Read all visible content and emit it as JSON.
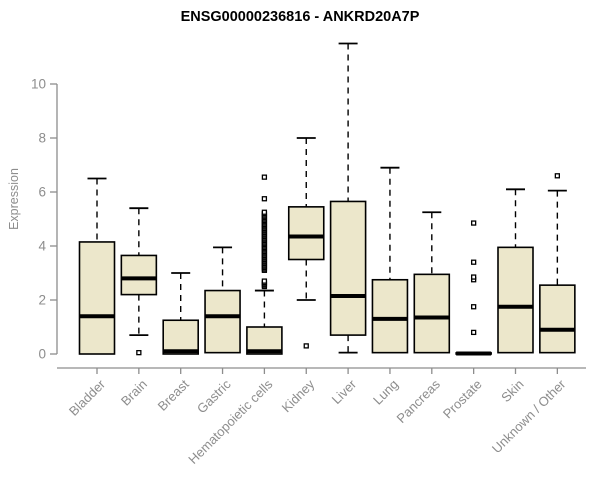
{
  "title": "ENSG00000236816 - ANKRD20A7P",
  "colors": {
    "box_fill": "#ece7cb",
    "box_stroke": "#000000",
    "median": "#000000",
    "whisker": "#000000",
    "outlier_stroke": "#000000",
    "axis": "#8d8d8d",
    "tick_text": "#8d8d8d",
    "title_text": "#000000",
    "background": "#ffffff"
  },
  "chart_data": {
    "type": "boxplot",
    "title": "ENSG00000236816 - ANKRD20A7P",
    "xlabel": "",
    "ylabel": "Expression",
    "yticks": [
      0,
      2,
      4,
      6,
      8,
      10
    ],
    "ylim": [
      0,
      11.8
    ],
    "grid": false,
    "legend": false,
    "categories": [
      "Bladder",
      "Brain",
      "Breast",
      "Gastric",
      "Hematopoietic cells",
      "Kidney",
      "Liver",
      "Lung",
      "Pancreas",
      "Prostate",
      "Skin",
      "Unknown / Other"
    ],
    "series": [
      {
        "name": "Bladder",
        "whisker_low": 0,
        "q1": 0,
        "median": 1.4,
        "q3": 4.15,
        "whisker_high": 6.5,
        "outliers": []
      },
      {
        "name": "Brain",
        "whisker_low": 0.7,
        "q1": 2.2,
        "median": 2.8,
        "q3": 3.65,
        "whisker_high": 5.4,
        "outliers": [
          0.05
        ]
      },
      {
        "name": "Breast",
        "whisker_low": 0,
        "q1": 0,
        "median": 0.1,
        "q3": 1.25,
        "whisker_high": 3.0,
        "outliers": []
      },
      {
        "name": "Gastric",
        "whisker_low": 0.05,
        "q1": 0.05,
        "median": 1.4,
        "q3": 2.35,
        "whisker_high": 3.95,
        "outliers": []
      },
      {
        "name": "Hematopoietic cells",
        "whisker_low": 0,
        "q1": 0,
        "median": 0.1,
        "q3": 1.0,
        "whisker_high": 2.35,
        "outliers": [
          2.5,
          2.55,
          2.6,
          2.65,
          2.7,
          3.1,
          3.15,
          3.2,
          3.25,
          3.3,
          3.35,
          3.4,
          3.45,
          3.5,
          3.55,
          3.6,
          3.65,
          3.7,
          3.75,
          3.8,
          3.85,
          3.9,
          3.95,
          4.0,
          4.05,
          4.1,
          4.15,
          4.2,
          4.25,
          4.3,
          4.35,
          4.4,
          4.45,
          4.5,
          4.55,
          4.6,
          4.65,
          4.7,
          4.75,
          4.8,
          4.85,
          4.9,
          4.95,
          5.0,
          5.05,
          5.1,
          5.15,
          5.2,
          5.25,
          5.75,
          6.55
        ]
      },
      {
        "name": "Kidney",
        "whisker_low": 2.0,
        "q1": 3.5,
        "median": 4.35,
        "q3": 5.45,
        "whisker_high": 8.0,
        "outliers": [
          0.3
        ]
      },
      {
        "name": "Liver",
        "whisker_low": 0.05,
        "q1": 0.7,
        "median": 2.15,
        "q3": 5.65,
        "whisker_high": 11.5,
        "outliers": []
      },
      {
        "name": "Lung",
        "whisker_low": 0.05,
        "q1": 0.05,
        "median": 1.3,
        "q3": 2.75,
        "whisker_high": 6.9,
        "outliers": []
      },
      {
        "name": "Pancreas",
        "whisker_low": 0.05,
        "q1": 0.05,
        "median": 1.35,
        "q3": 2.95,
        "whisker_high": 5.25,
        "outliers": []
      },
      {
        "name": "Prostate",
        "whisker_low": 0,
        "q1": 0,
        "median": 0.02,
        "q3": 0.04,
        "whisker_high": 0.04,
        "outliers": [
          0.8,
          1.75,
          2.75,
          2.85,
          3.4,
          4.85
        ]
      },
      {
        "name": "Skin",
        "whisker_low": 0.05,
        "q1": 0.05,
        "median": 1.75,
        "q3": 3.95,
        "whisker_high": 6.1,
        "outliers": []
      },
      {
        "name": "Unknown / Other",
        "whisker_low": 0.05,
        "q1": 0.05,
        "median": 0.9,
        "q3": 2.55,
        "whisker_high": 6.05,
        "outliers": [
          6.6
        ]
      }
    ]
  }
}
